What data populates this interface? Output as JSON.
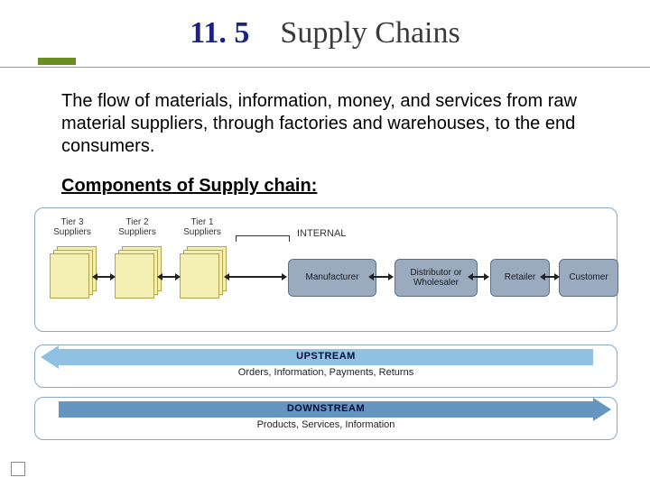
{
  "title": {
    "number": "11. 5",
    "text": "Supply Chains"
  },
  "colors": {
    "title_number": "#1a237e",
    "title_text": "#3a3a3a",
    "accent_bar": "#6b8e23",
    "rule": "#999999",
    "panel_border": "#8aa8c4",
    "supplier_fill": "#f3eeb2",
    "supplier_border": "#b0a84a",
    "bluebox_fill": "#9aabc0",
    "bluebox_border": "#5a6e88",
    "upstream_fill": "#8fc2e2",
    "downstream_fill": "#6596c0"
  },
  "body_text": "The flow of materials, information, money, and services from raw material suppliers, through factories and warehouses, to the end consumers.",
  "subheading": "Components of Supply chain:",
  "diagram": {
    "type": "flowchart",
    "tiers": [
      {
        "label": "Tier 3\nSuppliers"
      },
      {
        "label": "Tier 2\nSuppliers"
      },
      {
        "label": "Tier 1\nSuppliers"
      }
    ],
    "internal_label": "INTERNAL",
    "nodes": [
      {
        "id": "mfr",
        "label": "Manufacturer"
      },
      {
        "id": "dist",
        "label": "Distributor or\nWholesaler"
      },
      {
        "id": "ret",
        "label": "Retailer"
      },
      {
        "id": "cust",
        "label": "Customer"
      }
    ]
  },
  "flows": {
    "upstream": {
      "title": "UPSTREAM",
      "sub": "Orders, Information, Payments, Returns"
    },
    "downstream": {
      "title": "DOWNSTREAM",
      "sub": "Products, Services, Information"
    }
  }
}
